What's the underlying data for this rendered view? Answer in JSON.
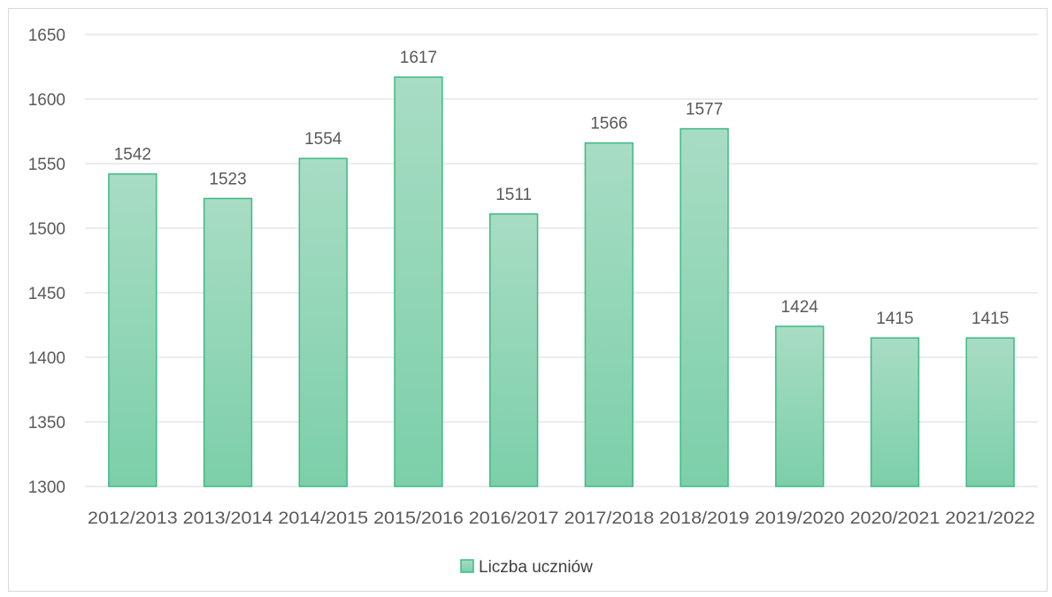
{
  "chart_data": {
    "type": "bar",
    "categories": [
      "2012/2013",
      "2013/2014",
      "2014/2015",
      "2015/2016",
      "2016/2017",
      "2017/2018",
      "2018/2019",
      "2019/2020",
      "2020/2021",
      "2021/2022"
    ],
    "series": [
      {
        "name": "Liczba uczniów",
        "values": [
          1542,
          1523,
          1554,
          1617,
          1511,
          1566,
          1577,
          1424,
          1415,
          1415
        ]
      }
    ],
    "ylim": [
      1300,
      1650
    ],
    "yticks": [
      1300,
      1350,
      1400,
      1450,
      1500,
      1550,
      1600,
      1650
    ],
    "grid": true,
    "legend_position": "bottom",
    "data_labels": true,
    "colors": {
      "bar_fill_top": "#a8dcc4",
      "bar_fill_bottom": "#7ccfaa",
      "bar_stroke": "#3dba83",
      "grid": "#d9d9d9",
      "text": "#595959"
    }
  }
}
